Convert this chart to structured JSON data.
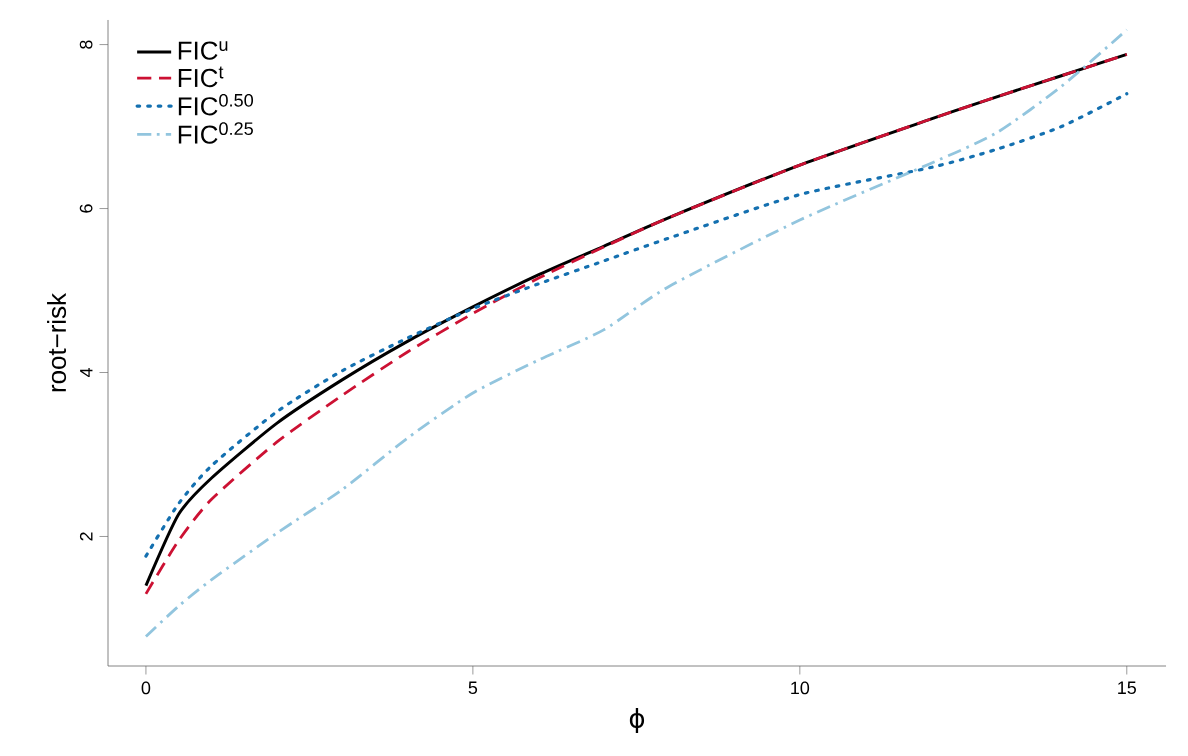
{
  "chart_data": {
    "type": "line",
    "xlabel": "ϕ",
    "ylabel": "root−risk",
    "x": [
      0,
      0.5,
      1,
      2,
      3,
      4,
      5,
      6,
      7,
      8,
      10,
      12,
      13,
      14,
      15
    ],
    "xlim": [
      -0.58,
      15.6
    ],
    "ylim": [
      0.42,
      8.3
    ],
    "xticks": [
      0,
      5,
      10,
      15
    ],
    "yticks": [
      2,
      4,
      6,
      8
    ],
    "legend": "top left",
    "grid": false,
    "series": [
      {
        "name": "FIC$^{u}$",
        "color": "#000000",
        "line_style": "solid",
        "values": [
          1.4,
          2.27,
          2.71,
          3.38,
          3.91,
          4.38,
          4.8,
          5.19,
          5.54,
          5.89,
          6.53,
          7.09,
          7.36,
          7.62,
          7.88
        ]
      },
      {
        "name": "FIC$^{t}$",
        "color": "#cc1133",
        "line_style": "dashed",
        "values": [
          1.3,
          1.95,
          2.45,
          3.15,
          3.72,
          4.25,
          4.72,
          5.15,
          5.53,
          5.89,
          6.53,
          7.09,
          7.36,
          7.62,
          7.88
        ]
      },
      {
        "name": "FIC$^{0.50}$",
        "color": "#1470b0",
        "line_style": "dotted",
        "values": [
          1.76,
          2.4,
          2.86,
          3.52,
          4.02,
          4.42,
          4.78,
          5.08,
          5.36,
          5.64,
          6.17,
          6.5,
          6.72,
          7.0,
          7.4
        ]
      },
      {
        "name": "FIC$^{0.25}$",
        "color": "#92c5de",
        "line_style": "dashdot",
        "values": [
          0.78,
          1.15,
          1.47,
          2.04,
          2.57,
          3.2,
          3.75,
          4.15,
          4.52,
          5.05,
          5.86,
          6.55,
          6.92,
          7.49,
          8.18
        ]
      }
    ]
  }
}
